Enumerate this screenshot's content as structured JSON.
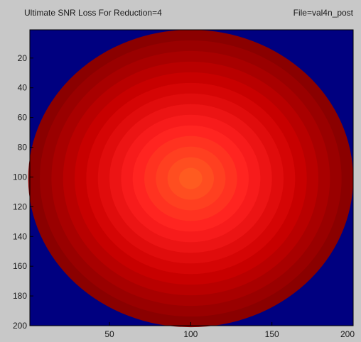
{
  "chart_data": {
    "type": "heatmap",
    "title": "Ultimate SNR Loss For Reduction=4",
    "subtitle": "File=val4n_post",
    "xlabel": "",
    "ylabel": "",
    "xlim": [
      1,
      200
    ],
    "ylim": [
      1,
      200
    ],
    "x_ticks": [
      "50",
      "100",
      "150",
      "200"
    ],
    "y_ticks": [
      "20",
      "40",
      "60",
      "80",
      "100",
      "120",
      "140",
      "160",
      "180",
      "200"
    ],
    "x_tick_values": [
      50,
      100,
      150,
      200
    ],
    "y_tick_values": [
      20,
      40,
      60,
      80,
      100,
      120,
      140,
      160,
      180,
      200
    ],
    "y_direction": "reversed",
    "region": {
      "shape": "circle",
      "center_x": 100,
      "center_y": 101,
      "radius_x": 100,
      "radius_y": 100,
      "peak_x": 100,
      "peak_y": 101
    },
    "colormap": [
      "#000080",
      "#8b0000",
      "#cd0000",
      "#ff2020",
      "#ff5a20"
    ],
    "background_color": "#000080",
    "levels": 14,
    "grid": false,
    "legend": "none"
  }
}
